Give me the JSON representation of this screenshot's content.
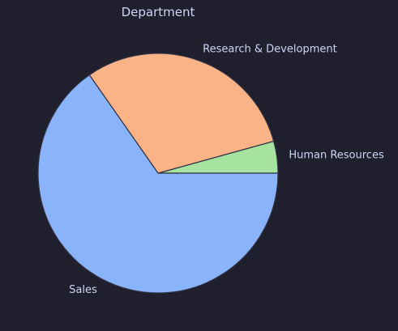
{
  "chart_data": {
    "type": "pie",
    "title": "Department",
    "categories": [
      "Human Resources",
      "Research & Development",
      "Sales"
    ],
    "values": [
      4.3,
      30.4,
      65.3
    ],
    "colors": [
      "#a6e3a1",
      "#fab387",
      "#89b4fa"
    ],
    "edge_color": "#313244",
    "start_angle_deg": 0,
    "direction": "counterclockwise",
    "legend": "none"
  },
  "background_color": "#1f1f2e",
  "text_color": "#cdd6f4"
}
